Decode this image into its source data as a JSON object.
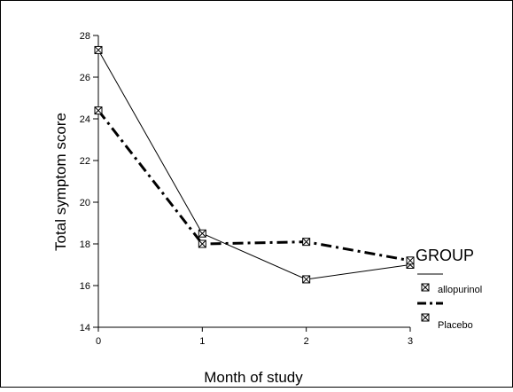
{
  "chart_data": {
    "type": "line",
    "title": "",
    "xlabel": "Month of study",
    "ylabel": "Total symptom score",
    "x": [
      0,
      1,
      2,
      3
    ],
    "xlim": [
      0,
      3
    ],
    "ylim": [
      14,
      28
    ],
    "x_ticks": [
      "0",
      "1",
      "2",
      "3"
    ],
    "y_ticks": [
      "14",
      "16",
      "18",
      "20",
      "22",
      "24",
      "26",
      "28"
    ],
    "grid": false,
    "legend": {
      "title": "GROUP",
      "placement": "right",
      "entries": [
        "allopurinol",
        "Placebo"
      ]
    },
    "series": [
      {
        "name": "allopurinol",
        "values": [
          27.3,
          18.5,
          16.3,
          17.0
        ],
        "line_style": "solid",
        "color": "#000000"
      },
      {
        "name": "Placebo",
        "values": [
          24.4,
          18.0,
          18.1,
          17.2
        ],
        "line_style": "dash-dot",
        "color": "#000000"
      }
    ]
  }
}
